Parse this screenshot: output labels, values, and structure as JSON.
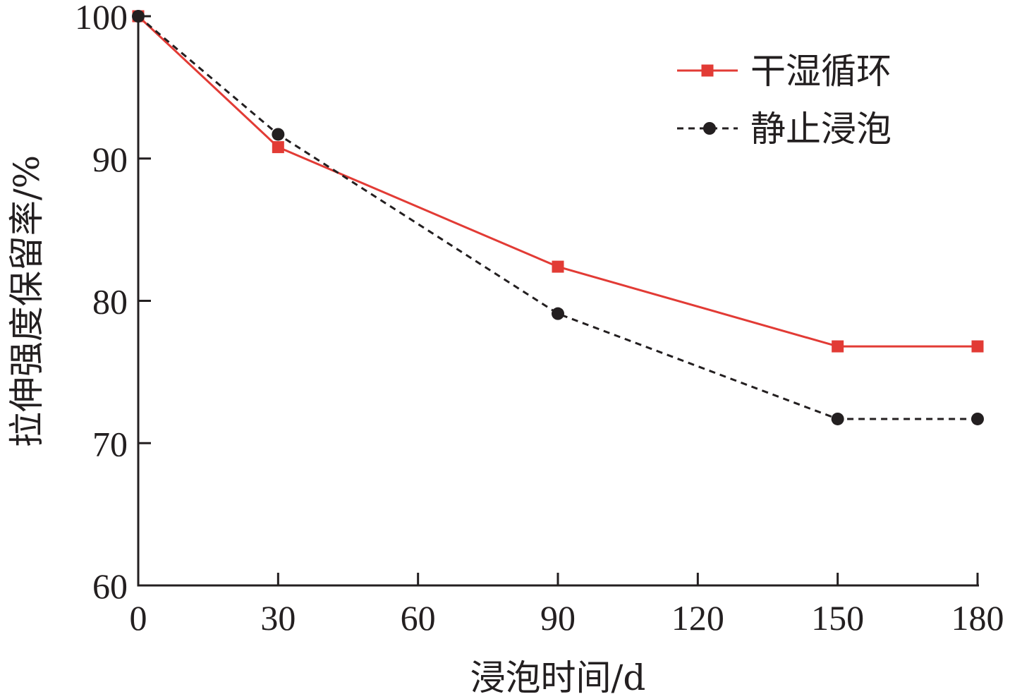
{
  "chart_data": {
    "type": "line",
    "xlabel": "浸泡时间/d",
    "ylabel": "拉伸强度保留率/%",
    "xlim": [
      0,
      180
    ],
    "ylim": [
      60,
      100
    ],
    "xticks": [
      0,
      30,
      60,
      90,
      120,
      150,
      180
    ],
    "yticks": [
      60,
      70,
      80,
      90,
      100
    ],
    "grid": false,
    "legend_position": "top-right",
    "series": [
      {
        "name": "干湿循环",
        "color": "#e23b35",
        "line_style": "solid",
        "marker": "square",
        "x": [
          0,
          30,
          90,
          150,
          180
        ],
        "values": [
          100,
          90.8,
          82.4,
          76.8,
          76.8
        ]
      },
      {
        "name": "静止浸泡",
        "color": "#231f20",
        "line_style": "dashed",
        "marker": "circle",
        "x": [
          0,
          30,
          90,
          150,
          180
        ],
        "values": [
          100,
          91.7,
          79.1,
          71.7,
          71.7
        ]
      }
    ]
  }
}
